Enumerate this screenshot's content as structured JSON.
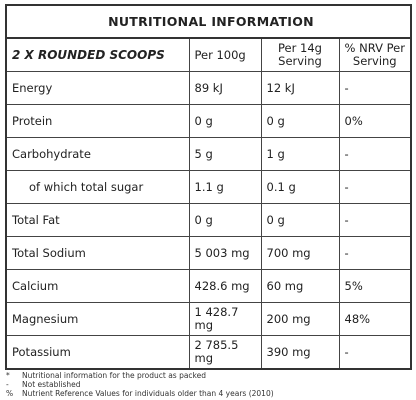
{
  "header": {
    "title": "NUTRITIONAL INFORMATION"
  },
  "table": {
    "columns": [
      [
        "2 X ROUNDED SCOOPS"
      ],
      [
        "Per 100g"
      ],
      [
        "Per 14g",
        "Serving"
      ],
      [
        "% NRV Per",
        "Serving"
      ]
    ],
    "rows": [
      [
        "Energy",
        "89 kJ",
        "12 kJ",
        "-"
      ],
      [
        "Protein",
        "0 g",
        "0 g",
        "0%"
      ],
      [
        "Carbohydrate",
        "5 g",
        "1 g",
        "-"
      ],
      [
        "of which total sugar",
        "1.1 g",
        "0.1 g",
        "-"
      ],
      [
        "Total Fat",
        "0 g",
        "0 g",
        "-"
      ],
      [
        "Total Sodium",
        "5 003 mg",
        "700 mg",
        "-"
      ],
      [
        "Calcium",
        "428.6 mg",
        "60 mg",
        "5%"
      ],
      [
        "Magnesium",
        "1 428.7 mg",
        "200 mg",
        "48%"
      ],
      [
        "Potassium",
        "2 785.5 mg",
        "390 mg",
        "-"
      ]
    ]
  },
  "footnotes": [
    [
      "*",
      "Nutritional information for the product as packed"
    ],
    [
      "-",
      "Not established"
    ],
    [
      "%",
      "Nutrient Reference Values for individuals older than 4 years (2010)"
    ]
  ]
}
